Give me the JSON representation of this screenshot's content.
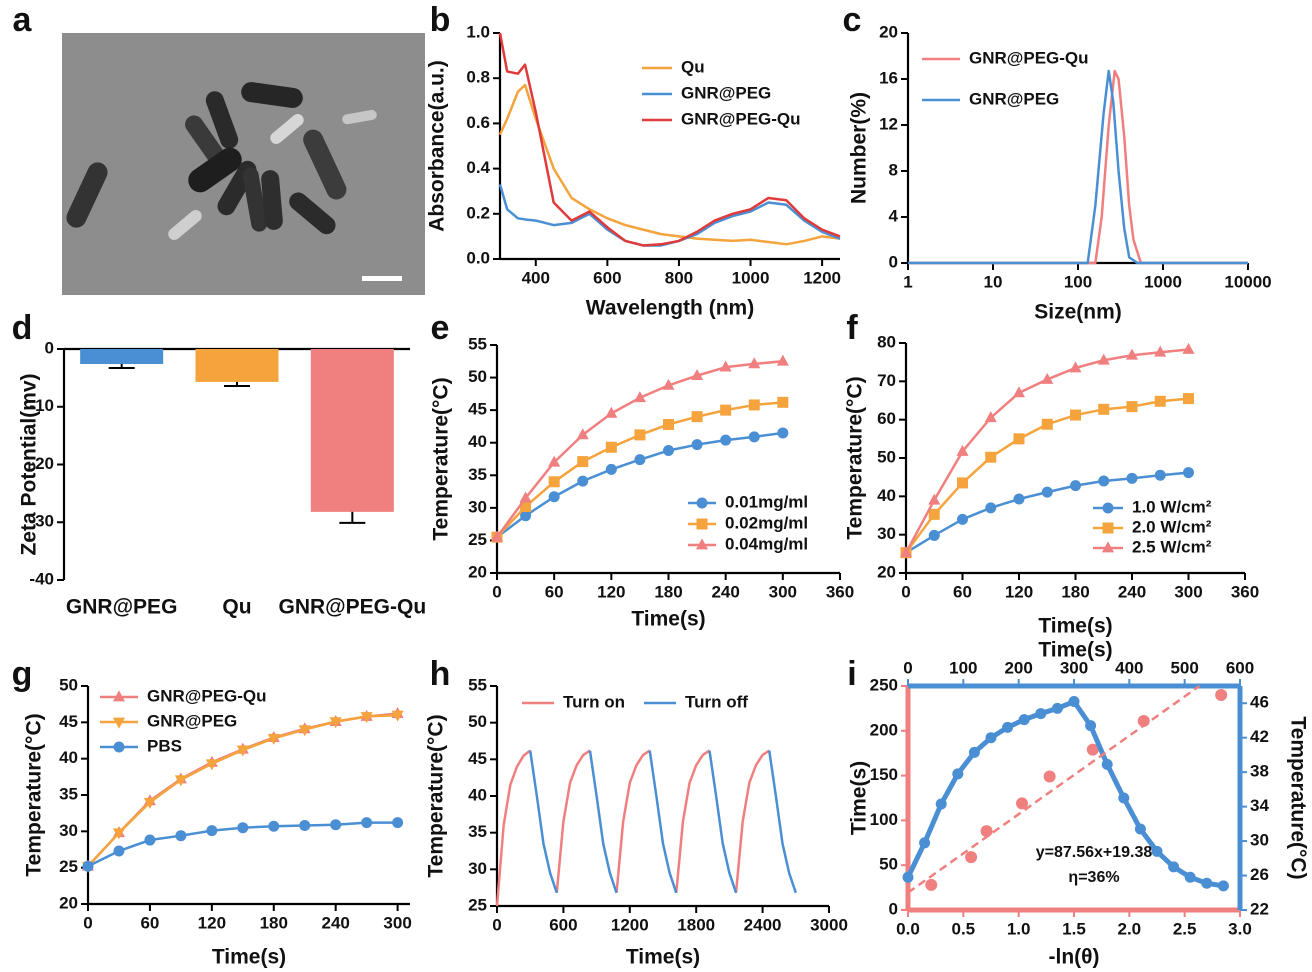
{
  "chart_data": [
    {
      "type": "image",
      "panel": "a"
    },
    {
      "type": "line",
      "panel": "b",
      "xlabel": "Wavelength (nm)",
      "ylabel": "Absorbance(a.u.)",
      "x": [
        300,
        320,
        350,
        370,
        400,
        450,
        500,
        550,
        600,
        650,
        700,
        750,
        800,
        850,
        900,
        950,
        1000,
        1050,
        1100,
        1150,
        1200,
        1250
      ],
      "series": [
        {
          "name": "Qu",
          "color": "#f5a33c",
          "values": [
            0.55,
            0.62,
            0.74,
            0.77,
            0.62,
            0.4,
            0.27,
            0.22,
            0.18,
            0.15,
            0.13,
            0.11,
            0.1,
            0.09,
            0.085,
            0.08,
            0.085,
            0.075,
            0.065,
            0.08,
            0.1,
            0.09
          ]
        },
        {
          "name": "GNR@PEG",
          "color": "#4a8fd4",
          "values": [
            0.33,
            0.22,
            0.18,
            0.175,
            0.17,
            0.15,
            0.16,
            0.2,
            0.13,
            0.08,
            0.06,
            0.06,
            0.08,
            0.11,
            0.16,
            0.19,
            0.21,
            0.25,
            0.24,
            0.17,
            0.12,
            0.09
          ]
        },
        {
          "name": "GNR@PEG-Qu",
          "color": "#e03a3a",
          "values": [
            1.0,
            0.83,
            0.82,
            0.86,
            0.65,
            0.25,
            0.17,
            0.21,
            0.14,
            0.08,
            0.06,
            0.065,
            0.08,
            0.12,
            0.17,
            0.2,
            0.22,
            0.27,
            0.26,
            0.18,
            0.13,
            0.1
          ]
        }
      ],
      "xlim": [
        300,
        1250
      ],
      "xticks": [
        400,
        600,
        800,
        1000,
        1200
      ],
      "ylim": [
        0,
        1
      ],
      "yticks": [
        {
          "value": 0,
          "label": "0.0"
        },
        0.2,
        0.4,
        0.6,
        0.8,
        {
          "value": 1,
          "label": "1.0"
        }
      ],
      "legend": "upper right"
    },
    {
      "type": "line",
      "panel": "c",
      "xlabel": "Size(nm)",
      "ylabel": "Number(%)",
      "xscale": "log",
      "series": [
        {
          "name": "GNR@PEG-Qu",
          "color": "#f07f7f",
          "x": [
            1,
            100,
            160,
            190,
            230,
            270,
            300,
            350,
            400,
            450,
            550,
            10000
          ],
          "values": [
            0,
            0,
            0,
            4,
            12,
            16.7,
            16,
            11,
            5,
            2,
            0,
            0
          ]
        },
        {
          "name": "GNR@PEG",
          "color": "#4a8fd4",
          "x": [
            1,
            100,
            130,
            160,
            200,
            230,
            260,
            300,
            350,
            400,
            500,
            10000
          ],
          "values": [
            0,
            0,
            0,
            5,
            13,
            16.7,
            14,
            8,
            3,
            0.5,
            0,
            0
          ]
        }
      ],
      "xlim": [
        1,
        10000
      ],
      "xticks": [
        1,
        10,
        100,
        1000,
        10000
      ],
      "ylim": [
        0,
        20
      ],
      "yticks": [
        0,
        4,
        8,
        12,
        16,
        20
      ],
      "legend": "upper left"
    },
    {
      "type": "bar",
      "panel": "d",
      "ylabel": "Zeta Potential(mv)",
      "categories": [
        "GNR@PEG",
        "Qu",
        "GNR@PEG-Qu"
      ],
      "values": [
        -2.6,
        -5.7,
        -28.2
      ],
      "errors": [
        0.7,
        0.7,
        1.9
      ],
      "colors": [
        "#4a8fd4",
        "#f5a33c",
        "#f07f7f"
      ],
      "ylim": [
        -40,
        0
      ],
      "yticks": [
        -40,
        -30,
        -20,
        -10,
        0
      ]
    },
    {
      "type": "line",
      "panel": "e",
      "xlabel": "Time(s)",
      "ylabel": "Temperature(°C)",
      "x": [
        0,
        30,
        60,
        90,
        120,
        150,
        180,
        210,
        240,
        270,
        300
      ],
      "series": [
        {
          "name": "0.01mg/ml",
          "color": "#4a8fd4",
          "marker": "circle",
          "values": [
            25.5,
            28.8,
            31.7,
            34.1,
            35.9,
            37.4,
            38.8,
            39.7,
            40.4,
            40.9,
            41.5
          ]
        },
        {
          "name": "0.02mg/ml",
          "color": "#f5a33c",
          "marker": "square",
          "values": [
            25.5,
            30.2,
            34.0,
            37.1,
            39.3,
            41.2,
            42.8,
            44.0,
            45.0,
            45.8,
            46.2
          ]
        },
        {
          "name": "0.04mg/ml",
          "color": "#f07f7f",
          "marker": "triangle",
          "values": [
            25.5,
            31.5,
            37.0,
            41.2,
            44.5,
            46.9,
            48.8,
            50.3,
            51.6,
            52.1,
            52.5
          ]
        }
      ],
      "xlim": [
        0,
        360
      ],
      "xticks": [
        0,
        60,
        120,
        180,
        240,
        300,
        360
      ],
      "ylim": [
        20,
        55
      ],
      "yticks": [
        20,
        25,
        30,
        35,
        40,
        45,
        50,
        55
      ],
      "legend": "lower right"
    },
    {
      "type": "line",
      "panel": "f",
      "xlabels": [
        "Time(s)",
        "Time(s)"
      ],
      "ylabel": "Temperature(°C)",
      "x": [
        0,
        30,
        60,
        90,
        120,
        150,
        180,
        210,
        240,
        270,
        300
      ],
      "series": [
        {
          "name": "1.0 W/cm²",
          "color": "#4a8fd4",
          "marker": "circle",
          "values": [
            25.3,
            29.8,
            34.0,
            37.0,
            39.3,
            41.1,
            42.8,
            44.0,
            44.7,
            45.5,
            46.2
          ]
        },
        {
          "name": "2.0 W/cm²",
          "color": "#f5a33c",
          "marker": "square",
          "values": [
            25.3,
            35.3,
            43.5,
            50.2,
            55.0,
            58.8,
            61.2,
            62.7,
            63.4,
            64.8,
            65.5
          ]
        },
        {
          "name": "2.5 W/cm²",
          "color": "#f07f7f",
          "marker": "triangle",
          "values": [
            25.3,
            39.0,
            51.7,
            60.5,
            67.0,
            70.5,
            73.5,
            75.5,
            76.8,
            77.6,
            78.3
          ]
        }
      ],
      "xlim": [
        0,
        360
      ],
      "xticks": [
        0,
        60,
        120,
        180,
        240,
        300,
        360
      ],
      "ylim": [
        20,
        80
      ],
      "yticks": [
        20,
        30,
        40,
        50,
        60,
        70,
        80
      ],
      "legend": "lower right"
    },
    {
      "type": "line",
      "panel": "g",
      "xlabel": "Time(s)",
      "ylabel": "Temperature(°C)",
      "x": [
        0,
        30,
        60,
        90,
        120,
        150,
        180,
        210,
        240,
        270,
        300
      ],
      "series": [
        {
          "name": "GNR@PEG-Qu",
          "color": "#f07f7f",
          "marker": "triangle",
          "values": [
            25.2,
            29.8,
            34.2,
            37.2,
            39.5,
            41.3,
            42.9,
            44.1,
            45.1,
            45.8,
            46.2
          ]
        },
        {
          "name": "GNR@PEG",
          "color": "#f5a33c",
          "marker": "triangle-down",
          "values": [
            25.2,
            29.8,
            34.0,
            37.1,
            39.3,
            41.2,
            42.8,
            44.0,
            45.1,
            45.8,
            46.0
          ]
        },
        {
          "name": "PBS",
          "color": "#4a8fd4",
          "marker": "circle",
          "values": [
            25.2,
            27.3,
            28.8,
            29.4,
            30.1,
            30.5,
            30.7,
            30.8,
            30.9,
            31.2,
            31.2
          ]
        }
      ],
      "xlim": [
        0,
        312
      ],
      "xticks": [
        0,
        60,
        120,
        180,
        240,
        300
      ],
      "ylim": [
        20,
        50
      ],
      "yticks": [
        20,
        25,
        30,
        35,
        40,
        45,
        50
      ],
      "legend": "upper left"
    },
    {
      "type": "line",
      "panel": "h",
      "xlabel": "Time(s)",
      "ylabel": "Temperature(°C)",
      "series": [
        {
          "name": "Turn on",
          "color": "#f07f7f",
          "x": [
            0,
            60,
            120,
            180,
            240,
            300,
            null,
            540,
            600,
            660,
            720,
            780,
            840,
            null,
            1080,
            1140,
            1200,
            1260,
            1320,
            1380,
            null,
            1620,
            1680,
            1740,
            1800,
            1860,
            1920,
            null,
            2160,
            2220,
            2280,
            2340,
            2400,
            2460
          ],
          "values": [
            25.0,
            36.0,
            41.5,
            44.0,
            45.5,
            46.2,
            null,
            26.8,
            36.5,
            41.8,
            44.2,
            45.6,
            46.2,
            null,
            26.8,
            36.5,
            41.8,
            44.2,
            45.6,
            46.2,
            null,
            26.8,
            36.5,
            41.8,
            44.2,
            45.6,
            46.2,
            null,
            26.8,
            36.5,
            41.8,
            44.2,
            45.6,
            46.2
          ]
        },
        {
          "name": "Turn off",
          "color": "#4a8fd4",
          "x": [
            300,
            360,
            420,
            480,
            540,
            null,
            840,
            900,
            960,
            1020,
            1080,
            null,
            1380,
            1440,
            1500,
            1560,
            1620,
            null,
            1920,
            1980,
            2040,
            2100,
            2160,
            null,
            2460,
            2520,
            2580,
            2640,
            2700
          ],
          "values": [
            46.2,
            40.0,
            33.5,
            29.5,
            26.8,
            null,
            46.2,
            40.0,
            33.5,
            29.5,
            26.8,
            null,
            46.2,
            40.0,
            33.5,
            29.5,
            26.8,
            null,
            46.2,
            40.0,
            33.5,
            29.5,
            26.8,
            null,
            46.2,
            40.0,
            33.5,
            29.5,
            26.8
          ]
        }
      ],
      "xlim": [
        0,
        3000
      ],
      "xticks": [
        0,
        600,
        1200,
        1800,
        2400,
        3000
      ],
      "ylim": [
        25,
        55
      ],
      "yticks": [
        25,
        30,
        35,
        40,
        45,
        50,
        55
      ],
      "legend": "upper center"
    },
    {
      "type": "combo",
      "panel": "i",
      "xlabel": "-ln(θ)",
      "ylabel": "Time(s)",
      "y2label": "Temperature(°C)",
      "xlim": [
        0,
        3
      ],
      "xticks": [
        {
          "value": 0,
          "label": "0.0"
        },
        0.5,
        {
          "value": 1,
          "label": "1.0"
        },
        1.5,
        {
          "value": 2,
          "label": "2.0"
        },
        2.5,
        {
          "value": 3,
          "label": "3.0"
        }
      ],
      "ylim": [
        0,
        250
      ],
      "yticks": [
        0,
        50,
        100,
        150,
        200,
        250
      ],
      "x2lim": [
        0,
        600
      ],
      "x2ticks": [
        0,
        100,
        200,
        300,
        400,
        500,
        600
      ],
      "y2lim": [
        22,
        48
      ],
      "y2ticks": [
        22,
        26,
        30,
        34,
        38,
        42,
        46
      ],
      "series": [
        {
          "color": "#f07f7f",
          "line": false,
          "marker": "circle",
          "x": [
            0.21,
            0.57,
            0.71,
            1.03,
            1.28,
            1.67,
            2.13,
            2.83
          ],
          "values": [
            28,
            59,
            88,
            119,
            149,
            179,
            211,
            240
          ]
        },
        {
          "color": "#4a8fd4",
          "axis": "y2",
          "xaxis": "x2",
          "marker": "circle",
          "width": 5,
          "x": [
            0,
            30,
            60,
            90,
            120,
            150,
            180,
            210,
            240,
            270,
            300,
            330,
            360,
            390,
            420,
            450,
            480,
            510,
            540,
            570
          ],
          "values": [
            25.8,
            29.8,
            34.3,
            37.8,
            40.3,
            42.0,
            43.2,
            44.1,
            44.8,
            45.4,
            46.2,
            43.4,
            38.9,
            35.0,
            31.4,
            28.8,
            27.0,
            25.8,
            25.1,
            24.8
          ]
        }
      ],
      "fit": {
        "slope": 87.56,
        "intercept": 19.38,
        "label": "y=87.56x+19.38"
      },
      "annotation": "η=36%",
      "axis_colors": {
        "left": "#f07f7f",
        "bottom": "#f07f7f",
        "right": "#4a8fd4",
        "top": "#4a8fd4"
      }
    }
  ]
}
